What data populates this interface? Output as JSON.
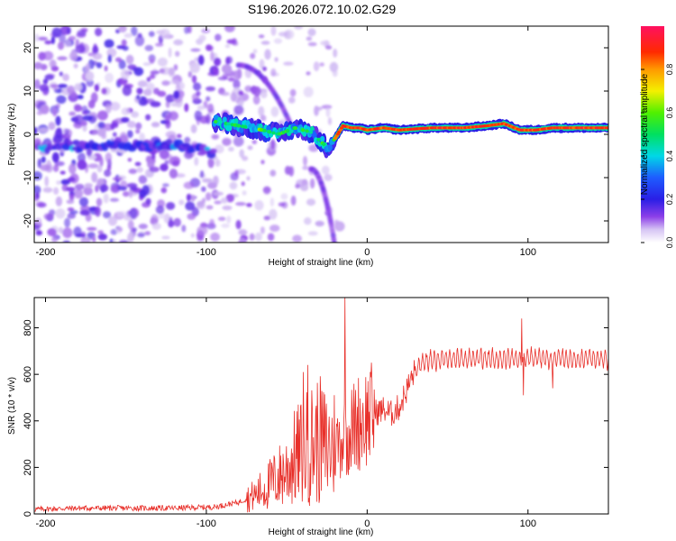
{
  "title": "S196.2026.072.10.02.G29",
  "chart_data": [
    {
      "type": "heatmap",
      "name": "spectrogram",
      "xlabel": "Height of straight line (km)",
      "ylabel": "Frequency (Hz)",
      "xlim": [
        -207,
        150
      ],
      "ylim": [
        -25,
        25
      ],
      "x_ticks": [
        -200,
        -100,
        0,
        100
      ],
      "y_ticks": [
        -20,
        -10,
        0,
        10,
        20
      ],
      "colorbar": {
        "label": "Normalized spectral amplitude",
        "range": [
          0,
          1
        ],
        "ticks": [
          0.0,
          0.2,
          0.4,
          0.6,
          0.8
        ]
      },
      "main_ridge": {
        "x": [
          -95,
          -80,
          -65,
          -55,
          -45,
          -35,
          -25,
          -20,
          -15,
          -10,
          -5,
          0,
          10,
          20,
          40,
          60,
          75,
          85,
          95,
          105,
          115,
          130,
          150
        ],
        "freq": [
          3,
          2,
          1,
          0,
          1.5,
          0.5,
          -3,
          -1,
          2,
          1.5,
          1.5,
          1,
          1.5,
          1,
          1.5,
          1.5,
          2,
          2.5,
          1,
          1,
          1.5,
          1.5,
          1.5
        ]
      },
      "low_band": {
        "x": [
          -200,
          -185,
          -170,
          -155,
          -140,
          -125,
          -110,
          -100
        ],
        "freq": [
          -3,
          -2.5,
          -3,
          -2,
          -3,
          -2.5,
          -3,
          -4
        ]
      }
    },
    {
      "type": "line",
      "name": "snr",
      "xlabel": "Height of straight line (km)",
      "ylabel": "SNR (10 * v/v)",
      "xlim": [
        -207,
        150
      ],
      "ylim": [
        0,
        930
      ],
      "x_ticks": [
        -200,
        -100,
        0,
        100
      ],
      "y_ticks": [
        0,
        200,
        400,
        600,
        800
      ],
      "color": "#e8302a",
      "series": [
        {
          "name": "SNR",
          "x": [
            -207,
            -180,
            -150,
            -120,
            -95,
            -80,
            -70,
            -60,
            -50,
            -45,
            -40,
            -35,
            -30,
            -25,
            -20,
            -15,
            -10,
            -5,
            0,
            10,
            15,
            20,
            25,
            30,
            35,
            40,
            50,
            60,
            70,
            80,
            90,
            96,
            100,
            110,
            115,
            120,
            130,
            140,
            150
          ],
          "y": [
            20,
            25,
            25,
            25,
            30,
            50,
            80,
            130,
            190,
            240,
            270,
            300,
            320,
            280,
            300,
            330,
            360,
            400,
            420,
            450,
            430,
            460,
            540,
            620,
            650,
            660,
            670,
            665,
            670,
            665,
            670,
            660,
            670,
            670,
            665,
            670,
            665,
            670,
            665
          ]
        }
      ]
    }
  ]
}
